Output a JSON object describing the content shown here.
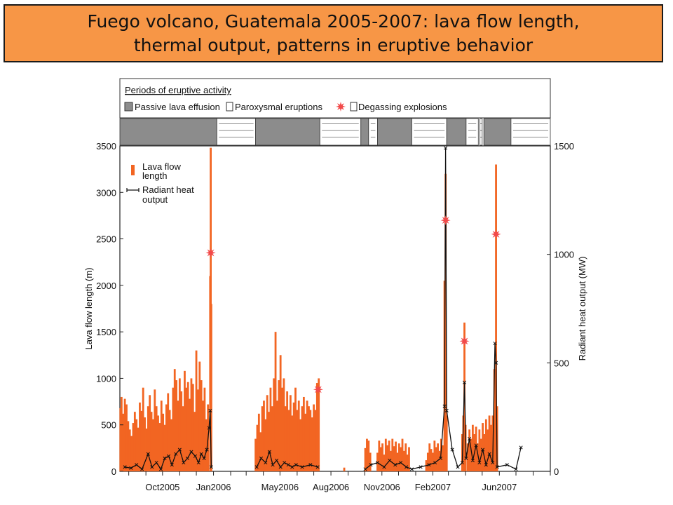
{
  "title": {
    "line1": "Fuego volcano, Guatemala 2005-2007:  lava flow length,",
    "line2": "thermal output, patterns in eruptive behavior"
  },
  "periods_legend": {
    "heading": "Periods of eruptive activity",
    "passive": "Passive lava effusion",
    "paroxysmal": "Paroxysmal eruptions",
    "degassing": "Degassing explosions"
  },
  "legend": {
    "lava_line1": "Lava flow",
    "lava_line2": "length",
    "heat_line1": "Radiant heat",
    "heat_line2": "output"
  },
  "colors": {
    "lava": "#f26522",
    "heat": "#111111",
    "star": "#f24a4a",
    "passive_fill": "#8c8c8c",
    "banner": "#f79646"
  },
  "chart_data": {
    "type": "bar",
    "ylabel": "Lava flow length (m)",
    "y2label": "Radiant heat output (MW)",
    "ylim": [
      0,
      3500
    ],
    "y2lim": [
      0,
      1500
    ],
    "yticks": [
      0,
      500,
      1000,
      1500,
      2000,
      2500,
      3000,
      3500
    ],
    "y2ticks": [
      0,
      500,
      1000,
      1500
    ],
    "xlim": [
      "2005-07-16",
      "2007-09-01"
    ],
    "xticks": [
      {
        "label": "Oct2005",
        "date": "2005-10-01"
      },
      {
        "label": "Jan2006",
        "date": "2006-01-01"
      },
      {
        "label": "May2006",
        "date": "2006-05-01"
      },
      {
        "label": "Aug2006",
        "date": "2006-08-01"
      },
      {
        "label": "Nov2006",
        "date": "2006-11-01"
      },
      {
        "label": "Feb2007",
        "date": "2007-02-01"
      },
      {
        "label": "Jun2007",
        "date": "2007-06-01"
      }
    ],
    "activity_periods": [
      {
        "type": "passive",
        "start": "2005-07-16",
        "end": "2006-01-07"
      },
      {
        "type": "degassing",
        "start": "2006-01-07",
        "end": "2006-03-18"
      },
      {
        "type": "passive",
        "start": "2006-03-18",
        "end": "2006-07-12"
      },
      {
        "type": "degassing",
        "start": "2006-07-12",
        "end": "2006-09-24"
      },
      {
        "type": "passive",
        "start": "2006-09-24",
        "end": "2006-10-08"
      },
      {
        "type": "degassing",
        "start": "2006-10-08",
        "end": "2006-10-24"
      },
      {
        "type": "passive",
        "start": "2006-10-24",
        "end": "2006-12-25"
      },
      {
        "type": "degassing",
        "start": "2006-12-25",
        "end": "2007-02-26"
      },
      {
        "type": "passive",
        "start": "2007-02-26",
        "end": "2007-04-02"
      },
      {
        "type": "degassing",
        "start": "2007-04-02",
        "end": "2007-04-24"
      },
      {
        "type": "degassing",
        "start": "2007-04-27",
        "end": "2007-05-01"
      },
      {
        "type": "passive",
        "start": "2007-05-04",
        "end": "2007-06-22"
      },
      {
        "type": "degassing",
        "start": "2007-06-22",
        "end": "2007-09-01"
      }
    ],
    "lava_flow_length": [
      {
        "date": "2005-07-17",
        "length": 680
      },
      {
        "date": "2005-07-19",
        "length": 800
      },
      {
        "date": "2005-07-22",
        "length": 620
      },
      {
        "date": "2005-07-25",
        "length": 780
      },
      {
        "date": "2005-07-28",
        "length": 720
      },
      {
        "date": "2005-07-31",
        "length": 540
      },
      {
        "date": "2005-08-03",
        "length": 450
      },
      {
        "date": "2005-08-06",
        "length": 380
      },
      {
        "date": "2005-08-09",
        "length": 520
      },
      {
        "date": "2005-08-12",
        "length": 640
      },
      {
        "date": "2005-08-15",
        "length": 560
      },
      {
        "date": "2005-08-18",
        "length": 470
      },
      {
        "date": "2005-08-21",
        "length": 740
      },
      {
        "date": "2005-08-24",
        "length": 650
      },
      {
        "date": "2005-08-27",
        "length": 900
      },
      {
        "date": "2005-08-30",
        "length": 580
      },
      {
        "date": "2005-09-02",
        "length": 460
      },
      {
        "date": "2005-09-05",
        "length": 700
      },
      {
        "date": "2005-09-08",
        "length": 820
      },
      {
        "date": "2005-09-11",
        "length": 640
      },
      {
        "date": "2005-09-14",
        "length": 560
      },
      {
        "date": "2005-09-17",
        "length": 880
      },
      {
        "date": "2005-09-20",
        "length": 700
      },
      {
        "date": "2005-09-23",
        "length": 600
      },
      {
        "date": "2005-09-26",
        "length": 520
      },
      {
        "date": "2005-09-29",
        "length": 760
      },
      {
        "date": "2005-10-02",
        "length": 620
      },
      {
        "date": "2005-10-05",
        "length": 500
      },
      {
        "date": "2005-10-08",
        "length": 720
      },
      {
        "date": "2005-10-11",
        "length": 840
      },
      {
        "date": "2005-10-14",
        "length": 660
      },
      {
        "date": "2005-10-17",
        "length": 560
      },
      {
        "date": "2005-10-20",
        "length": 900
      },
      {
        "date": "2005-10-23",
        "length": 1100
      },
      {
        "date": "2005-10-26",
        "length": 980
      },
      {
        "date": "2005-10-29",
        "length": 760
      },
      {
        "date": "2005-11-01",
        "length": 1000
      },
      {
        "date": "2005-11-04",
        "length": 860
      },
      {
        "date": "2005-11-07",
        "length": 700
      },
      {
        "date": "2005-11-10",
        "length": 1080
      },
      {
        "date": "2005-11-13",
        "length": 900
      },
      {
        "date": "2005-11-16",
        "length": 960
      },
      {
        "date": "2005-11-19",
        "length": 780
      },
      {
        "date": "2005-11-22",
        "length": 1000
      },
      {
        "date": "2005-11-25",
        "length": 940
      },
      {
        "date": "2005-11-28",
        "length": 640
      },
      {
        "date": "2005-12-01",
        "length": 1300
      },
      {
        "date": "2005-12-04",
        "length": 880
      },
      {
        "date": "2005-12-07",
        "length": 1180
      },
      {
        "date": "2005-12-10",
        "length": 980
      },
      {
        "date": "2005-12-13",
        "length": 760
      },
      {
        "date": "2005-12-16",
        "length": 900
      },
      {
        "date": "2005-12-19",
        "length": 560
      },
      {
        "date": "2005-12-22",
        "length": 720
      },
      {
        "date": "2005-12-26",
        "length": 2100
      },
      {
        "date": "2005-12-27",
        "length": 3480
      },
      {
        "date": "2005-12-28",
        "length": 1800
      },
      {
        "date": "2006-03-18",
        "length": 350
      },
      {
        "date": "2006-03-21",
        "length": 500
      },
      {
        "date": "2006-03-24",
        "length": 620
      },
      {
        "date": "2006-03-27",
        "length": 420
      },
      {
        "date": "2006-03-30",
        "length": 700
      },
      {
        "date": "2006-04-02",
        "length": 760
      },
      {
        "date": "2006-04-05",
        "length": 560
      },
      {
        "date": "2006-04-08",
        "length": 820
      },
      {
        "date": "2006-04-11",
        "length": 640
      },
      {
        "date": "2006-04-14",
        "length": 900
      },
      {
        "date": "2006-04-17",
        "length": 700
      },
      {
        "date": "2006-04-20",
        "length": 1000
      },
      {
        "date": "2006-04-23",
        "length": 1500
      },
      {
        "date": "2006-04-26",
        "length": 760
      },
      {
        "date": "2006-04-29",
        "length": 980
      },
      {
        "date": "2006-05-02",
        "length": 1250
      },
      {
        "date": "2006-05-05",
        "length": 900
      },
      {
        "date": "2006-05-08",
        "length": 1000
      },
      {
        "date": "2006-05-11",
        "length": 700
      },
      {
        "date": "2006-05-14",
        "length": 860
      },
      {
        "date": "2006-05-17",
        "length": 660
      },
      {
        "date": "2006-05-20",
        "length": 820
      },
      {
        "date": "2006-05-23",
        "length": 600
      },
      {
        "date": "2006-05-26",
        "length": 740
      },
      {
        "date": "2006-05-29",
        "length": 900
      },
      {
        "date": "2006-06-01",
        "length": 660
      },
      {
        "date": "2006-06-04",
        "length": 760
      },
      {
        "date": "2006-06-07",
        "length": 560
      },
      {
        "date": "2006-06-10",
        "length": 700
      },
      {
        "date": "2006-06-13",
        "length": 800
      },
      {
        "date": "2006-06-16",
        "length": 620
      },
      {
        "date": "2006-06-19",
        "length": 760
      },
      {
        "date": "2006-06-22",
        "length": 700
      },
      {
        "date": "2006-06-25",
        "length": 660
      },
      {
        "date": "2006-06-28",
        "length": 580
      },
      {
        "date": "2006-07-01",
        "length": 720
      },
      {
        "date": "2006-07-04",
        "length": 660
      },
      {
        "date": "2006-07-07",
        "length": 950
      },
      {
        "date": "2006-07-10",
        "length": 1000
      },
      {
        "date": "2006-08-25",
        "length": 40
      },
      {
        "date": "2006-10-02",
        "length": 250
      },
      {
        "date": "2006-10-05",
        "length": 350
      },
      {
        "date": "2006-10-08",
        "length": 330
      },
      {
        "date": "2006-10-11",
        "length": 200
      },
      {
        "date": "2006-10-24",
        "length": 200
      },
      {
        "date": "2006-10-27",
        "length": 330
      },
      {
        "date": "2006-10-30",
        "length": 260
      },
      {
        "date": "2006-11-02",
        "length": 300
      },
      {
        "date": "2006-11-05",
        "length": 180
      },
      {
        "date": "2006-11-08",
        "length": 350
      },
      {
        "date": "2006-11-11",
        "length": 280
      },
      {
        "date": "2006-11-14",
        "length": 330
      },
      {
        "date": "2006-11-17",
        "length": 220
      },
      {
        "date": "2006-11-20",
        "length": 350
      },
      {
        "date": "2006-11-23",
        "length": 270
      },
      {
        "date": "2006-11-26",
        "length": 320
      },
      {
        "date": "2006-11-29",
        "length": 200
      },
      {
        "date": "2006-12-02",
        "length": 300
      },
      {
        "date": "2006-12-05",
        "length": 260
      },
      {
        "date": "2006-12-08",
        "length": 350
      },
      {
        "date": "2006-12-11",
        "length": 220
      },
      {
        "date": "2006-12-14",
        "length": 300
      },
      {
        "date": "2006-12-17",
        "length": 180
      },
      {
        "date": "2006-12-20",
        "length": 260
      },
      {
        "date": "2007-01-20",
        "length": 120
      },
      {
        "date": "2007-01-23",
        "length": 200
      },
      {
        "date": "2007-01-26",
        "length": 300
      },
      {
        "date": "2007-01-29",
        "length": 240
      },
      {
        "date": "2007-02-01",
        "length": 200
      },
      {
        "date": "2007-02-04",
        "length": 330
      },
      {
        "date": "2007-02-07",
        "length": 260
      },
      {
        "date": "2007-02-10",
        "length": 300
      },
      {
        "date": "2007-02-13",
        "length": 220
      },
      {
        "date": "2007-02-16",
        "length": 350
      },
      {
        "date": "2007-02-19",
        "length": 280
      },
      {
        "date": "2007-02-22",
        "length": 2050
      },
      {
        "date": "2007-02-24",
        "length": 3200
      },
      {
        "date": "2007-02-26",
        "length": 600
      },
      {
        "date": "2007-03-26",
        "length": 400
      },
      {
        "date": "2007-03-28",
        "length": 600
      },
      {
        "date": "2007-03-30",
        "length": 1600
      },
      {
        "date": "2007-04-01",
        "length": 500
      },
      {
        "date": "2007-04-05",
        "length": 300
      },
      {
        "date": "2007-04-08",
        "length": 450
      },
      {
        "date": "2007-04-11",
        "length": 350
      },
      {
        "date": "2007-04-14",
        "length": 500
      },
      {
        "date": "2007-04-17",
        "length": 400
      },
      {
        "date": "2007-04-20",
        "length": 480
      },
      {
        "date": "2007-04-23",
        "length": 300
      },
      {
        "date": "2007-04-26",
        "length": 450
      },
      {
        "date": "2007-04-29",
        "length": 350
      },
      {
        "date": "2007-05-02",
        "length": 520
      },
      {
        "date": "2007-05-05",
        "length": 400
      },
      {
        "date": "2007-05-08",
        "length": 560
      },
      {
        "date": "2007-05-11",
        "length": 450
      },
      {
        "date": "2007-05-14",
        "length": 600
      },
      {
        "date": "2007-05-17",
        "length": 500
      },
      {
        "date": "2007-05-20",
        "length": 600
      },
      {
        "date": "2007-05-23",
        "length": 1100
      },
      {
        "date": "2007-05-26",
        "length": 3300
      },
      {
        "date": "2007-05-28",
        "length": 700
      }
    ],
    "radiant_heat_output": [
      {
        "date": "2005-07-25",
        "mw": 20
      },
      {
        "date": "2005-08-05",
        "mw": 15
      },
      {
        "date": "2005-08-15",
        "mw": 30
      },
      {
        "date": "2005-08-25",
        "mw": 10
      },
      {
        "date": "2005-09-05",
        "mw": 80
      },
      {
        "date": "2005-09-12",
        "mw": 20
      },
      {
        "date": "2005-09-20",
        "mw": 40
      },
      {
        "date": "2005-09-28",
        "mw": 10
      },
      {
        "date": "2005-10-05",
        "mw": 60
      },
      {
        "date": "2005-10-12",
        "mw": 70
      },
      {
        "date": "2005-10-18",
        "mw": 30
      },
      {
        "date": "2005-10-25",
        "mw": 80
      },
      {
        "date": "2005-11-01",
        "mw": 100
      },
      {
        "date": "2005-11-08",
        "mw": 40
      },
      {
        "date": "2005-11-15",
        "mw": 60
      },
      {
        "date": "2005-11-22",
        "mw": 90
      },
      {
        "date": "2005-11-29",
        "mw": 70
      },
      {
        "date": "2005-12-05",
        "mw": 40
      },
      {
        "date": "2005-12-10",
        "mw": 80
      },
      {
        "date": "2005-12-15",
        "mw": 60
      },
      {
        "date": "2005-12-20",
        "mw": 100
      },
      {
        "date": "2005-12-24",
        "mw": 200
      },
      {
        "date": "2005-12-26",
        "mw": 280
      },
      {
        "date": "2005-12-28",
        "mw": 20
      },
      {
        "date": "2006-03-20",
        "mw": 20
      },
      {
        "date": "2006-03-28",
        "mw": 60
      },
      {
        "date": "2006-04-05",
        "mw": 40
      },
      {
        "date": "2006-04-12",
        "mw": 90
      },
      {
        "date": "2006-04-18",
        "mw": 30
      },
      {
        "date": "2006-04-25",
        "mw": 50
      },
      {
        "date": "2006-05-02",
        "mw": 20
      },
      {
        "date": "2006-05-09",
        "mw": 40
      },
      {
        "date": "2006-05-16",
        "mw": 30
      },
      {
        "date": "2006-05-23",
        "mw": 20
      },
      {
        "date": "2006-05-30",
        "mw": 30
      },
      {
        "date": "2006-06-10",
        "mw": 20
      },
      {
        "date": "2006-06-25",
        "mw": 30
      },
      {
        "date": "2006-07-08",
        "mw": 20
      },
      {
        "date": "2006-10-02",
        "mw": 10
      },
      {
        "date": "2006-10-12",
        "mw": 30
      },
      {
        "date": "2006-10-24",
        "mw": 40
      },
      {
        "date": "2006-11-05",
        "mw": 20
      },
      {
        "date": "2006-11-15",
        "mw": 50
      },
      {
        "date": "2006-11-25",
        "mw": 30
      },
      {
        "date": "2006-12-05",
        "mw": 40
      },
      {
        "date": "2006-12-15",
        "mw": 20
      },
      {
        "date": "2006-12-25",
        "mw": 10
      },
      {
        "date": "2007-01-10",
        "mw": 20
      },
      {
        "date": "2007-01-25",
        "mw": 30
      },
      {
        "date": "2007-02-05",
        "mw": 40
      },
      {
        "date": "2007-02-15",
        "mw": 60
      },
      {
        "date": "2007-02-22",
        "mw": 300
      },
      {
        "date": "2007-02-24",
        "mw": 1490
      },
      {
        "date": "2007-02-26",
        "mw": 280
      },
      {
        "date": "2007-03-08",
        "mw": 100
      },
      {
        "date": "2007-03-18",
        "mw": 20
      },
      {
        "date": "2007-03-26",
        "mw": 40
      },
      {
        "date": "2007-03-30",
        "mw": 410
      },
      {
        "date": "2007-04-02",
        "mw": 60
      },
      {
        "date": "2007-04-08",
        "mw": 150
      },
      {
        "date": "2007-04-14",
        "mw": 50
      },
      {
        "date": "2007-04-20",
        "mw": 120
      },
      {
        "date": "2007-04-26",
        "mw": 40
      },
      {
        "date": "2007-05-02",
        "mw": 100
      },
      {
        "date": "2007-05-08",
        "mw": 30
      },
      {
        "date": "2007-05-14",
        "mw": 80
      },
      {
        "date": "2007-05-20",
        "mw": 40
      },
      {
        "date": "2007-05-24",
        "mw": 590
      },
      {
        "date": "2007-05-26",
        "mw": 500
      },
      {
        "date": "2007-05-28",
        "mw": 20
      },
      {
        "date": "2007-06-15",
        "mw": 30
      },
      {
        "date": "2007-07-01",
        "mw": 10
      },
      {
        "date": "2007-07-10",
        "mw": 110
      }
    ],
    "paroxysmal_eruptions": [
      {
        "date": "2005-12-27",
        "length": 2350
      },
      {
        "date": "2006-07-09",
        "length": 880
      },
      {
        "date": "2007-02-24",
        "length": 2700
      },
      {
        "date": "2007-03-30",
        "length": 1400
      },
      {
        "date": "2007-05-26",
        "length": 2550
      }
    ]
  }
}
